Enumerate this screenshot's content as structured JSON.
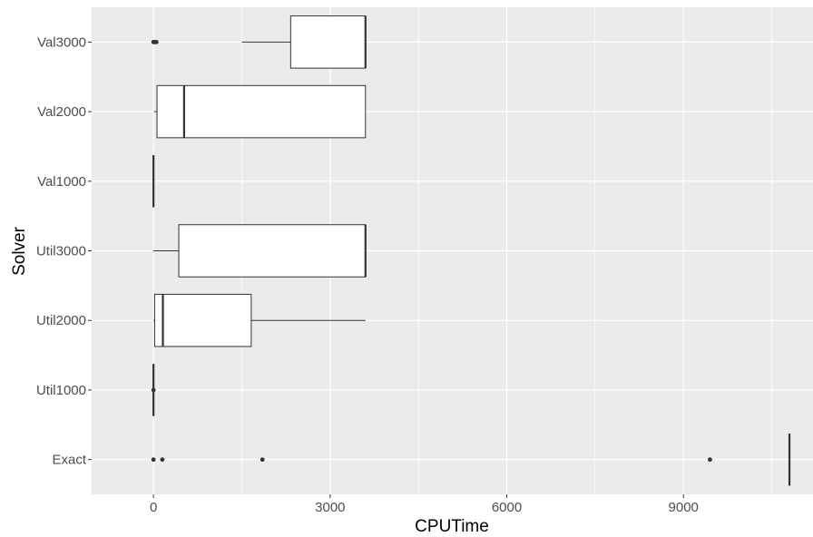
{
  "chart_data": {
    "type": "boxplot",
    "orientation": "horizontal",
    "xlabel": "CPUTime",
    "ylabel": "Solver",
    "xlim": [
      -1050,
      11200
    ],
    "x_ticks": [
      0,
      3000,
      6000,
      9000
    ],
    "x_tick_labels": [
      "0",
      "3000",
      "6000",
      "9000"
    ],
    "grid": true,
    "legend": "none",
    "colors": {
      "panel_background": "#ebebeb",
      "grid": "#ffffff",
      "box_fill": "#ffffff",
      "box_line": "#333333",
      "tick_label": "#4d4d4d"
    },
    "categories": [
      "Exact",
      "Util1000",
      "Util2000",
      "Util3000",
      "Val1000",
      "Val2000",
      "Val3000"
    ],
    "boxes": [
      {
        "category": "Exact",
        "min": 10800,
        "q1": 10800,
        "median": 10800,
        "q3": 10800,
        "max": 10800,
        "outliers": [
          0,
          150,
          1850,
          9450
        ]
      },
      {
        "category": "Util1000",
        "min": 0,
        "q1": 0,
        "median": 0,
        "q3": 0,
        "max": 0,
        "outliers": [
          0
        ]
      },
      {
        "category": "Util2000",
        "min": 0,
        "q1": 20,
        "median": 160,
        "q3": 1660,
        "max": 3600,
        "outliers": []
      },
      {
        "category": "Util3000",
        "min": 0,
        "q1": 430,
        "median": 3600,
        "q3": 3600,
        "max": 3600,
        "outliers": []
      },
      {
        "category": "Val1000",
        "min": 0,
        "q1": 0,
        "median": 0,
        "q3": 0,
        "max": 0,
        "outliers": []
      },
      {
        "category": "Val2000",
        "min": 10,
        "q1": 60,
        "median": 520,
        "q3": 3600,
        "max": 3600,
        "outliers": []
      },
      {
        "category": "Val3000",
        "min": 1500,
        "q1": 2330,
        "median": 3600,
        "q3": 3600,
        "max": 3600,
        "outliers": [
          0,
          20,
          50
        ]
      }
    ]
  }
}
